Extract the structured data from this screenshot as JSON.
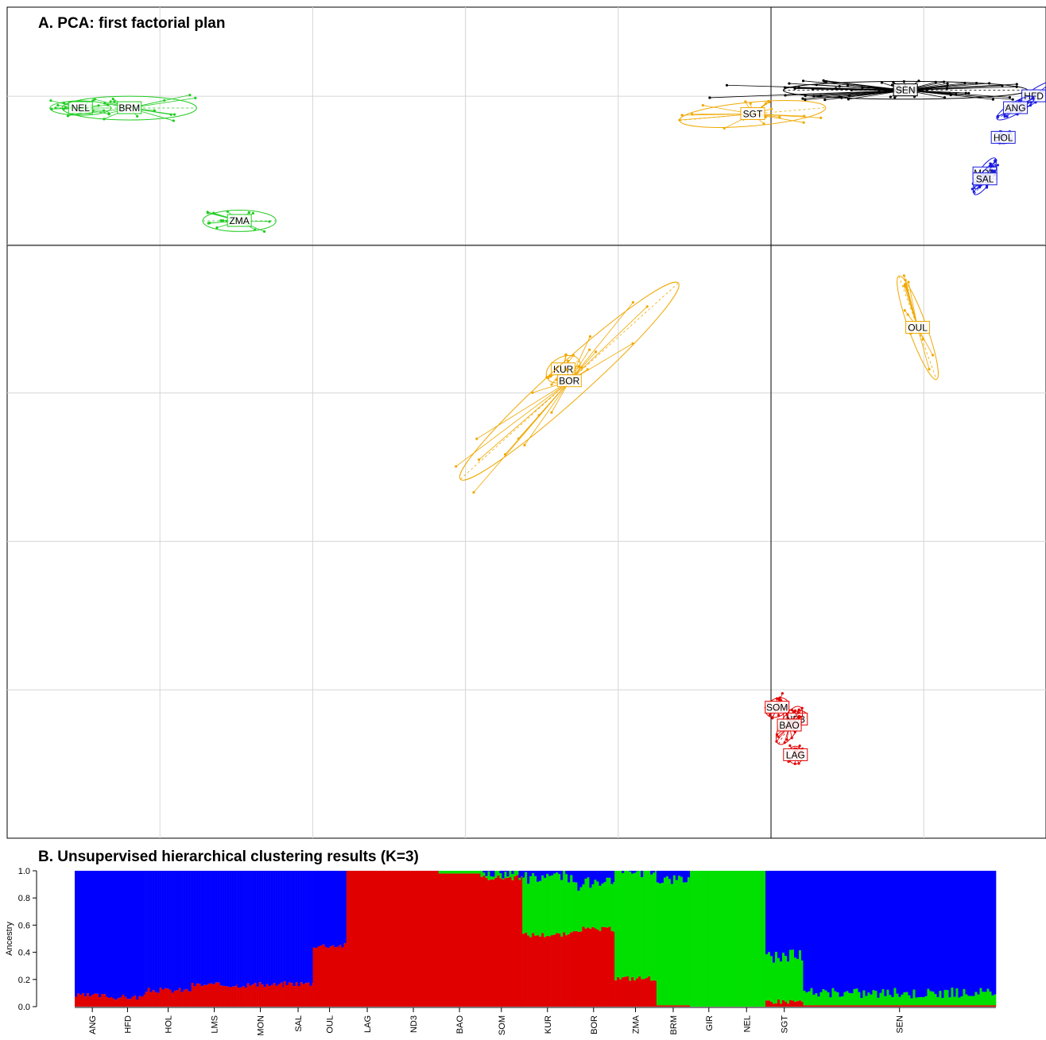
{
  "chart_data": [
    {
      "type": "scatter",
      "title": "A. PCA: first factorial plan",
      "xlabel": "",
      "ylabel": "",
      "grid": true,
      "axes_through_origin": true,
      "colors": {
        "black": "#000000",
        "blue": "#1a1adf",
        "green": "#22cc22",
        "orange": "#f0a800",
        "red": "#e00000"
      },
      "populations": [
        {
          "name": "SEN",
          "x": 0.22,
          "y": 0.01,
          "color": "black",
          "ellipse": [
            0.2,
            0.015,
            0
          ],
          "spread": "wide"
        },
        {
          "name": "HFD",
          "x": 0.43,
          "y": 0.0,
          "color": "blue",
          "ellipse": [
            0.04,
            0.01,
            35
          ]
        },
        {
          "name": "ANG",
          "x": 0.4,
          "y": -0.02,
          "color": "blue",
          "ellipse": [
            0.035,
            0.01,
            30
          ]
        },
        {
          "name": "HOL",
          "x": 0.38,
          "y": -0.07,
          "color": "blue",
          "ellipse": [
            0.015,
            0.01,
            0
          ]
        },
        {
          "name": "MON",
          "x": 0.35,
          "y": -0.13,
          "color": "blue",
          "ellipse": [
            0.03,
            0.01,
            55
          ]
        },
        {
          "name": "SAL",
          "x": 0.35,
          "y": -0.14,
          "color": "blue",
          "ellipse": [
            0.03,
            0.01,
            55
          ]
        },
        {
          "name": "SGT",
          "x": -0.03,
          "y": -0.03,
          "color": "orange",
          "ellipse": [
            0.12,
            0.02,
            5
          ]
        },
        {
          "name": "OUL",
          "x": 0.24,
          "y": -0.39,
          "color": "orange",
          "ellipse": [
            0.09,
            0.015,
            -70
          ]
        },
        {
          "name": "KUR",
          "x": -0.34,
          "y": -0.46,
          "color": "orange",
          "ellipse": [
            0.03,
            0.02,
            30
          ]
        },
        {
          "name": "BOR",
          "x": -0.33,
          "y": -0.48,
          "color": "orange",
          "ellipse": [
            0.24,
            0.03,
            42
          ]
        },
        {
          "name": "NEL",
          "x": -1.13,
          "y": -0.02,
          "color": "green",
          "ellipse": [
            0.05,
            0.012,
            0
          ]
        },
        {
          "name": "BRM",
          "x": -1.05,
          "y": -0.02,
          "color": "green",
          "ellipse": [
            0.11,
            0.02,
            0
          ]
        },
        {
          "name": "ZMA",
          "x": -0.87,
          "y": -0.21,
          "color": "green",
          "ellipse": [
            0.06,
            0.018,
            0
          ]
        },
        {
          "name": "SOM",
          "x": 0.01,
          "y": -1.03,
          "color": "red",
          "ellipse": [
            0.02,
            0.015,
            30
          ]
        },
        {
          "name": "ND3",
          "x": 0.04,
          "y": -1.05,
          "color": "red",
          "ellipse": [
            0.02,
            0.012,
            30
          ]
        },
        {
          "name": "BAO",
          "x": 0.03,
          "y": -1.06,
          "color": "red",
          "ellipse": [
            0.035,
            0.015,
            60
          ]
        },
        {
          "name": "LAG",
          "x": 0.04,
          "y": -1.11,
          "color": "red",
          "ellipse": [
            0.012,
            0.015,
            0
          ]
        }
      ],
      "xlim": [
        -1.25,
        0.45
      ],
      "ylim": [
        -1.25,
        0.15
      ],
      "grid_x": [
        -1.0,
        -0.75,
        -0.5,
        -0.25,
        0.0,
        0.25
      ],
      "grid_y": [
        0.0,
        -0.25,
        -0.5,
        -0.75,
        -1.0
      ]
    },
    {
      "type": "bar",
      "stacked": true,
      "title": "B. Unsupervised hierarchical clustering results (K=3)",
      "xlabel": "",
      "ylabel": "Ancestry",
      "ylim": [
        0,
        1
      ],
      "yticks": [
        "0.0",
        "0.2",
        "0.4",
        "0.6",
        "0.8",
        "1.0"
      ],
      "components": [
        {
          "color": "#e00000"
        },
        {
          "color": "#00e000"
        },
        {
          "color": "#0000ff"
        }
      ],
      "categories": [
        "ANG",
        "HFD",
        "HOL",
        "LMS",
        "MON",
        "SAL",
        "OUL",
        "LAG",
        "ND3",
        "BAO",
        "SOM",
        "KUR",
        "BOR",
        "ZMA",
        "BRM",
        "GIR",
        "NEL",
        "SGT",
        "SEN"
      ],
      "group_widths": [
        42,
        42,
        55,
        55,
        55,
        35,
        40,
        50,
        60,
        50,
        50,
        60,
        50,
        50,
        40,
        45,
        45,
        45,
        230
      ],
      "red": [
        0.08,
        0.07,
        0.12,
        0.16,
        0.16,
        0.17,
        0.45,
        1.0,
        1.0,
        0.98,
        0.95,
        0.53,
        0.57,
        0.21,
        0.01,
        0.0,
        0.0,
        0.04,
        0.01
      ],
      "green": [
        0.0,
        0.0,
        0.0,
        0.0,
        0.0,
        0.0,
        0.0,
        0.0,
        0.0,
        0.02,
        0.04,
        0.42,
        0.33,
        0.79,
        0.93,
        1.0,
        1.0,
        0.34,
        0.09
      ]
    }
  ]
}
